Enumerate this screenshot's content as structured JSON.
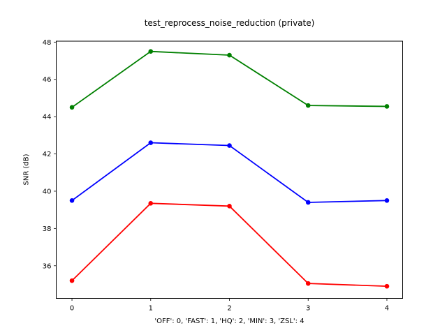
{
  "figure": {
    "background": "#ffffff",
    "spine_color": "#000000",
    "text_color": "#000000"
  },
  "chart_data": {
    "type": "line",
    "title": "test_reprocess_noise_reduction (private)",
    "xlabel": "'OFF': 0, 'FAST': 1, 'HQ': 2, 'MIN': 3, 'ZSL': 4",
    "ylabel": "SNR (dB)",
    "x": [
      0,
      1,
      2,
      3,
      4
    ],
    "series": [
      {
        "name": "green-series",
        "color": "#008000",
        "marker": "o",
        "values": [
          44.5,
          47.5,
          47.3,
          44.6,
          44.55
        ]
      },
      {
        "name": "blue-series",
        "color": "#0000ff",
        "marker": "o",
        "values": [
          39.5,
          42.6,
          42.45,
          39.4,
          39.5
        ]
      },
      {
        "name": "red-series",
        "color": "#ff0000",
        "marker": "o",
        "values": [
          35.2,
          39.35,
          39.2,
          35.05,
          34.9
        ]
      }
    ],
    "xticks": [
      0,
      1,
      2,
      3,
      4
    ],
    "yticks": [
      36,
      38,
      40,
      42,
      44,
      46,
      48
    ],
    "xlim": [
      -0.2,
      4.2
    ],
    "ylim": [
      34.25,
      48.05
    ],
    "grid": false,
    "legend": "none"
  }
}
